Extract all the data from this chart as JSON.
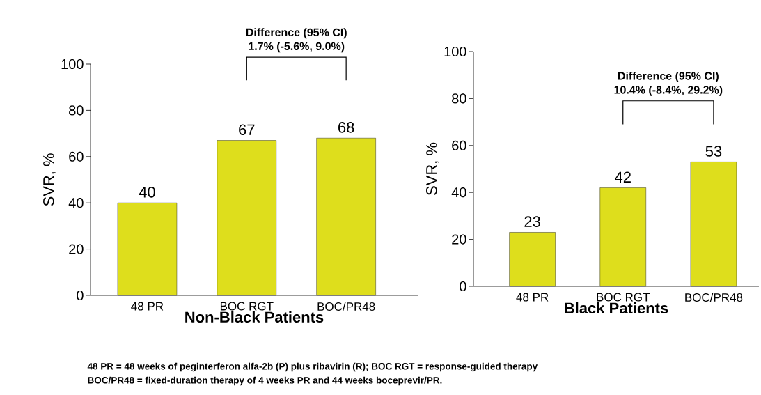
{
  "chart_data": [
    {
      "type": "bar",
      "categories": [
        "48 PR",
        "BOC RGT",
        "BOC/PR48"
      ],
      "values": [
        40,
        67,
        68
      ],
      "color": "#dede1c",
      "data_labels": true,
      "ylim": [
        0,
        100
      ],
      "yticks": [
        0,
        20,
        40,
        60,
        80,
        100
      ],
      "ylabel": "SVR, %",
      "xlabel": "Non-Black Patients",
      "grid": false,
      "annotations": [
        "Difference (95% CI)",
        "1.7% (-5.6%, 9.0%)",
        "48 PR = 48 weeks of peginterferon alfa-2b (P) plus ribavirin (R); BOC RGT = response-guided therapy",
        "BOC/PR48 = fixed-duration therapy of 4 weeks PR and 44 weeks boceprevir/PR."
      ]
    },
    {
      "type": "bar",
      "categories": [
        "48 PR",
        "BOC RGT",
        "BOC/PR48"
      ],
      "values": [
        23,
        42,
        53
      ],
      "color": "#dede1c",
      "data_labels": true,
      "ylim": [
        0,
        100
      ],
      "yticks": [
        0,
        20,
        40,
        60,
        80,
        100
      ],
      "ylabel": "SVR, %",
      "xlabel": "Black Patients",
      "grid": false,
      "annotations": [
        "Difference (95% CI)",
        "10.4% (-8.4%, 29.2%)"
      ]
    }
  ]
}
